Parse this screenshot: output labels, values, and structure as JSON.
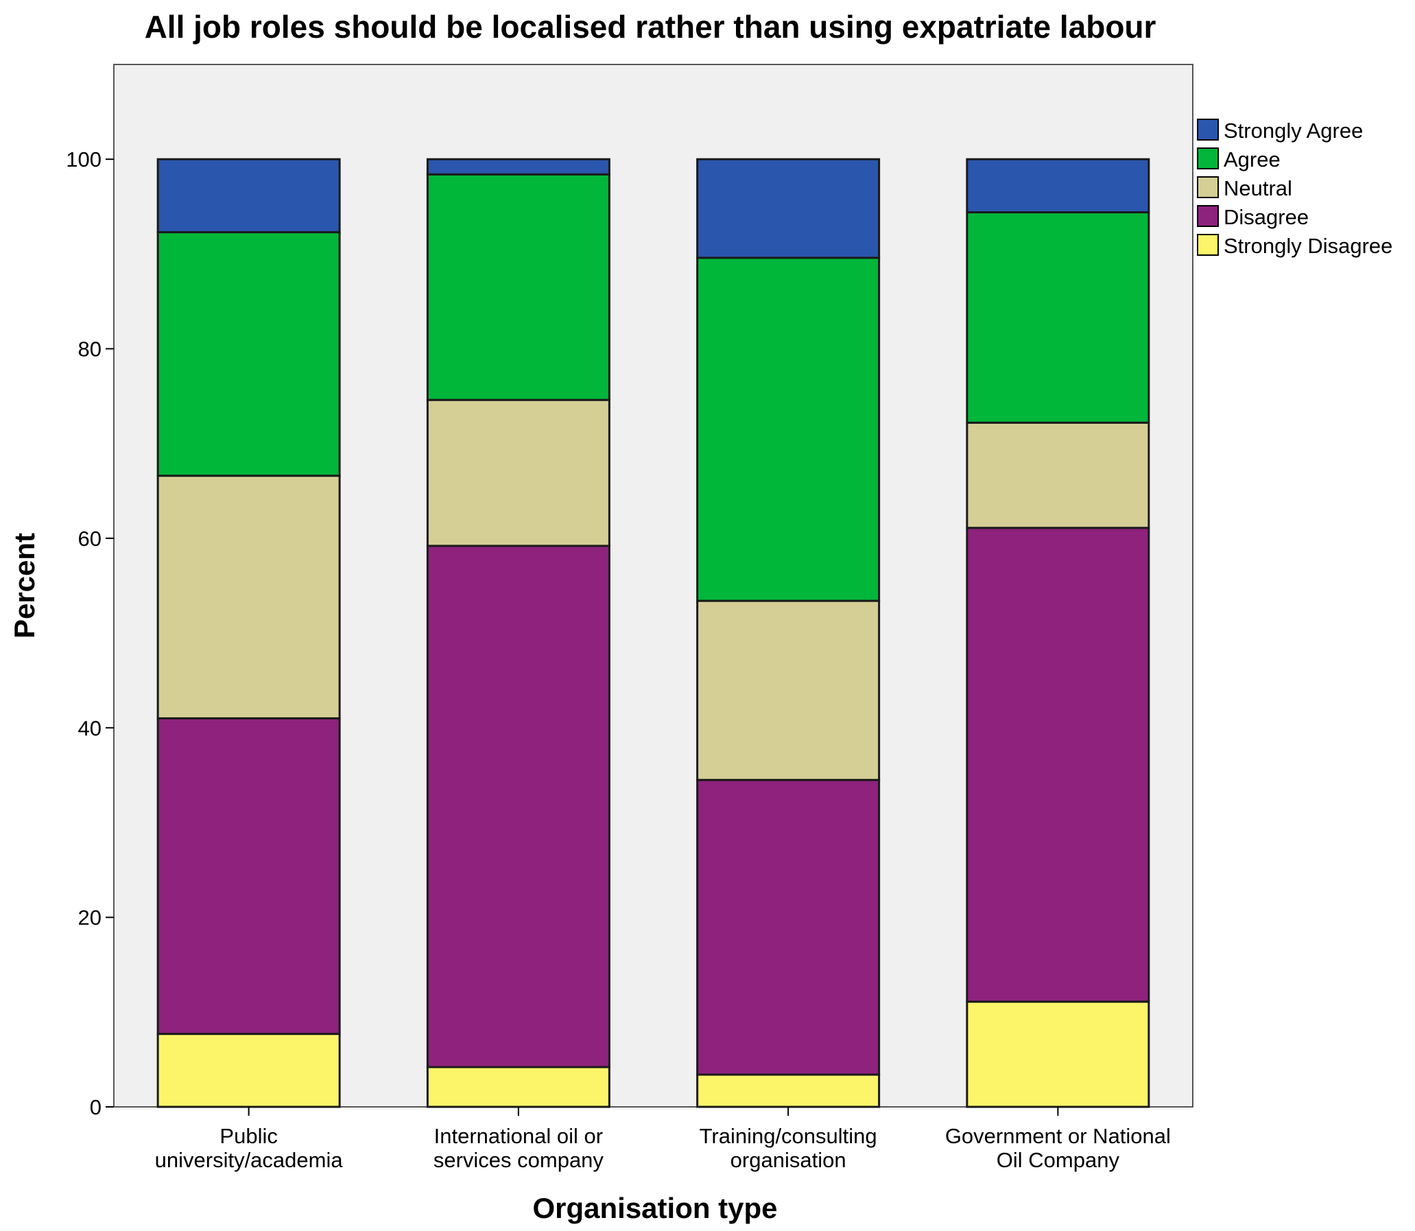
{
  "chart_data": {
    "type": "bar",
    "stacked": true,
    "title": "All job roles should be localised rather than using expatriate labour",
    "xlabel": "Organisation type",
    "ylabel": "Percent",
    "ylim": [
      0,
      110
    ],
    "yticks": [
      0,
      20,
      40,
      60,
      80,
      100
    ],
    "grid": false,
    "legend_position": "top-right",
    "categories": [
      [
        "Public",
        "university/academia"
      ],
      [
        "International oil or",
        "services company"
      ],
      [
        "Training/consulting",
        "organisation"
      ],
      [
        "Government or National",
        "Oil Company"
      ]
    ],
    "series": [
      {
        "name": "Strongly Disagree",
        "color": "#fcf56a",
        "values": [
          7.7,
          4.2,
          3.4,
          11.1
        ]
      },
      {
        "name": "Disagree",
        "color": "#8e227d",
        "values": [
          33.3,
          55.0,
          31.1,
          50.0
        ]
      },
      {
        "name": "Neutral",
        "color": "#d5cf96",
        "values": [
          25.6,
          15.4,
          18.9,
          11.1
        ]
      },
      {
        "name": "Agree",
        "color": "#00b73a",
        "values": [
          25.7,
          23.8,
          36.2,
          22.2
        ]
      },
      {
        "name": "Strongly Agree",
        "color": "#2a56ae",
        "values": [
          7.7,
          1.6,
          10.4,
          5.6
        ]
      }
    ],
    "legend_order": [
      "Strongly Agree",
      "Agree",
      "Neutral",
      "Disagree",
      "Strongly Disagree"
    ],
    "colors": {
      "plot_background": "#f0f0f0",
      "axis": "#000000"
    }
  }
}
